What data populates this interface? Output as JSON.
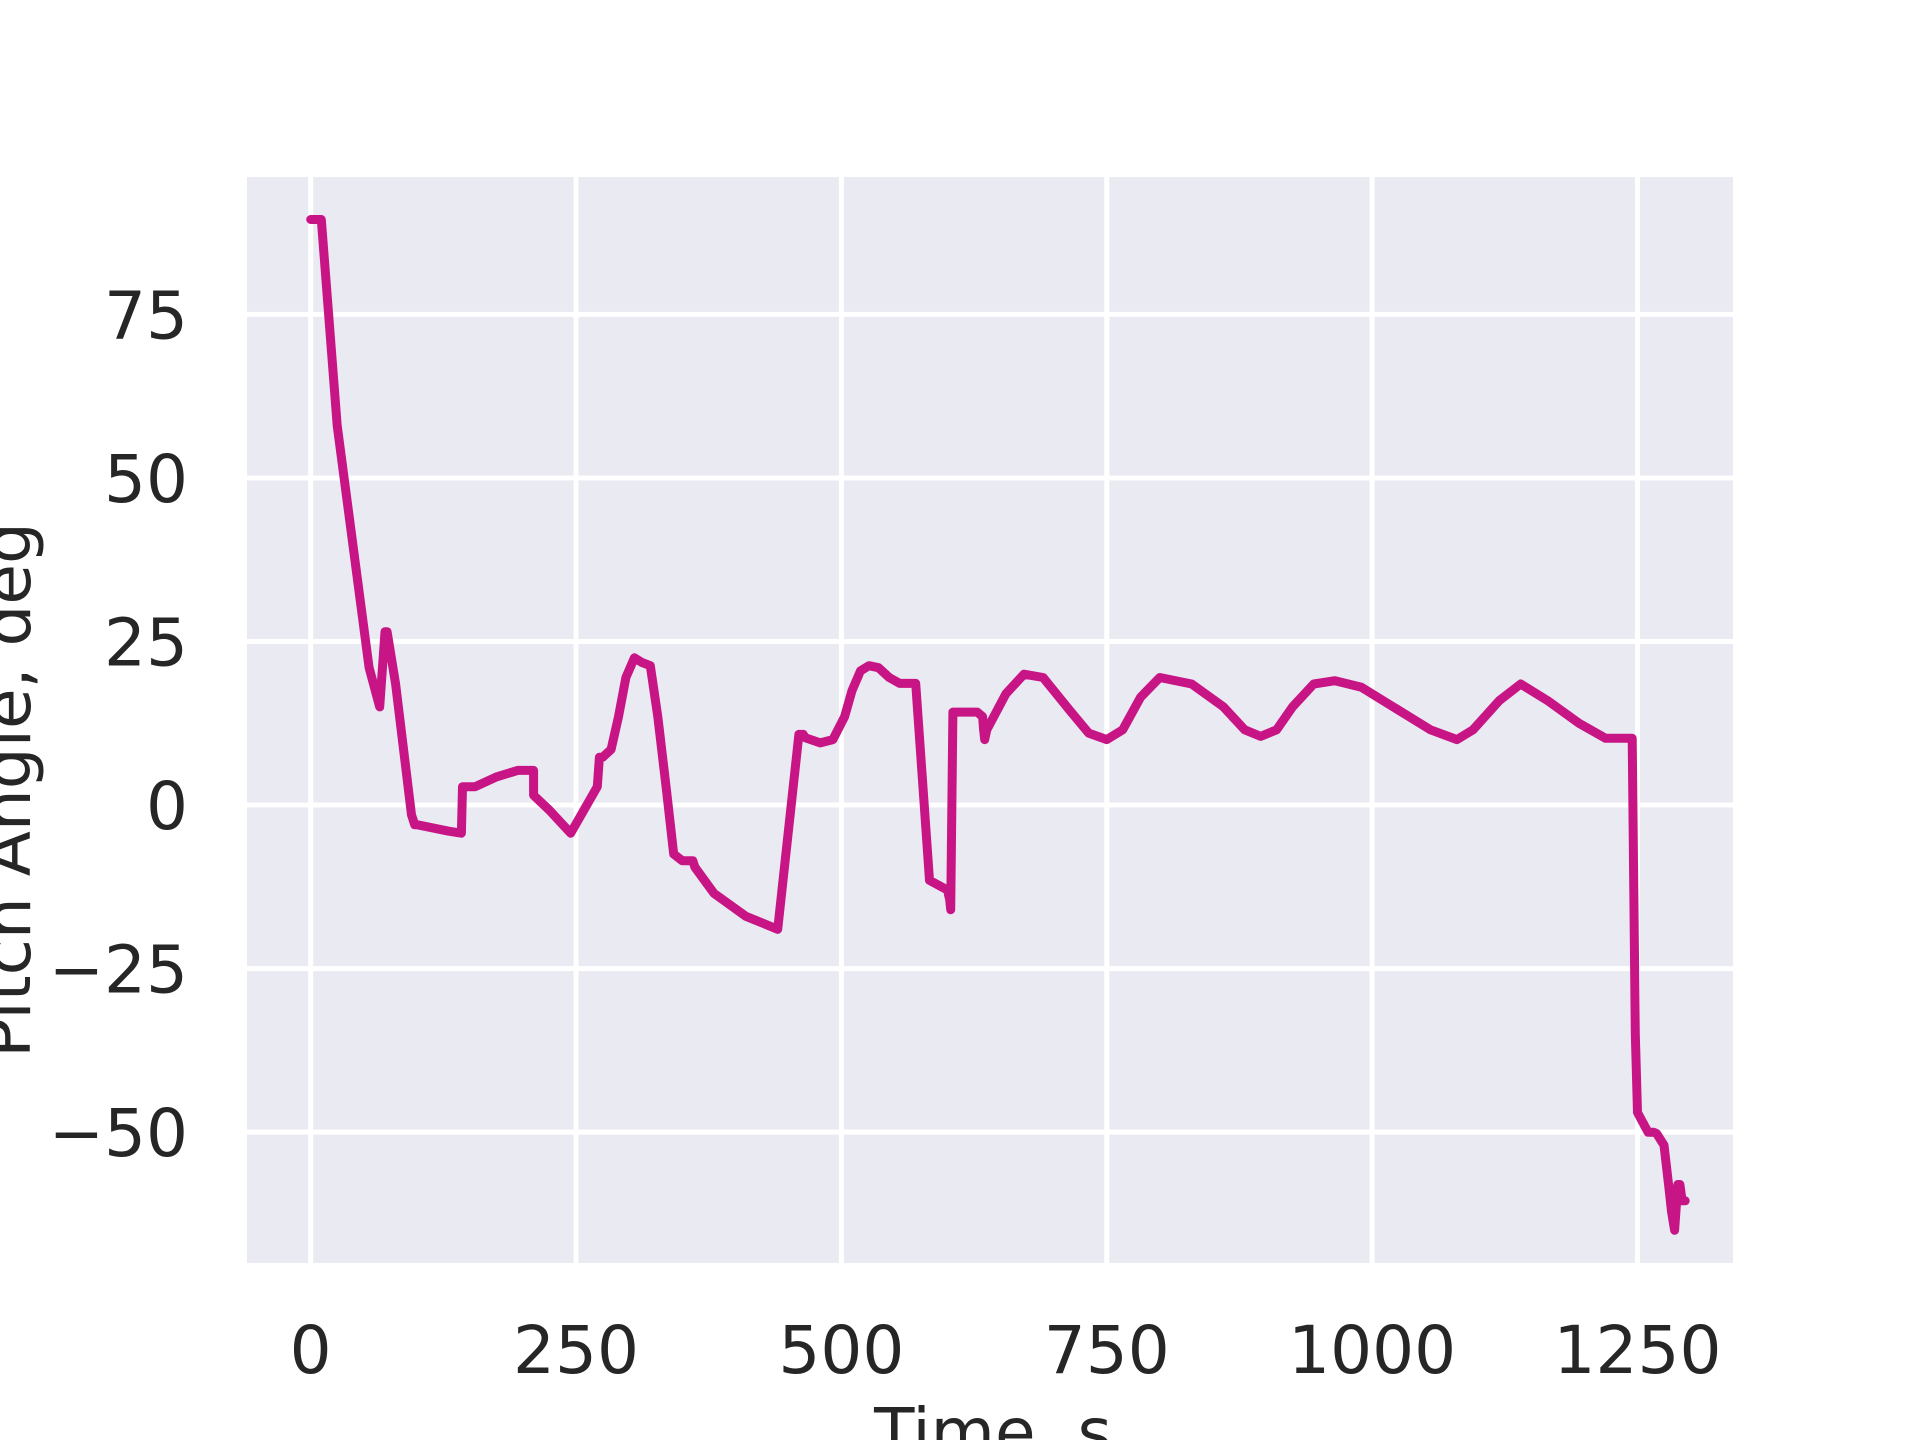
{
  "chart_data": {
    "type": "line",
    "title": "",
    "xlabel": "Time, s",
    "ylabel": "Pitch Angle, deg",
    "xlim": [
      -60,
      1340
    ],
    "ylim": [
      -70,
      96
    ],
    "xticks": [
      0,
      250,
      500,
      750,
      1000,
      1250
    ],
    "xtick_labels": [
      "0",
      "250",
      "500",
      "750",
      "1000",
      "1250"
    ],
    "yticks": [
      -50,
      -25,
      0,
      25,
      50,
      75
    ],
    "ytick_labels": [
      "−50",
      "−25",
      "0",
      "25",
      "50",
      75
    ],
    "grid": true,
    "line_color": "#c71585",
    "plot_background": "#eaeaf2",
    "grid_color": "#ffffff",
    "series": [
      {
        "x": [
          0,
          10,
          25,
          55,
          65,
          70,
          72,
          80,
          95,
          98,
          100,
          115,
          130,
          142,
          143,
          148,
          155,
          175,
          195,
          210,
          210,
          212,
          225,
          245,
          270,
          272,
          275,
          283,
          290,
          297,
          305,
          312,
          320,
          327,
          335,
          342,
          350,
          355,
          358,
          360,
          362,
          380,
          410,
          440,
          460,
          463,
          464,
          466,
          480,
          492,
          503,
          510,
          518,
          526,
          535,
          545,
          555,
          570,
          583,
          600,
          602,
          603,
          605,
          613,
          620,
          628,
          633,
          634,
          635,
          637,
          655,
          672,
          690,
          700,
          715,
          733,
          750,
          765,
          782,
          800,
          830,
          860,
          880,
          895,
          910,
          925,
          945,
          965,
          990,
          1020,
          1055,
          1080,
          1095,
          1120,
          1140,
          1165,
          1195,
          1220,
          1240,
          1245,
          1248,
          1250,
          1260,
          1265,
          1268,
          1275,
          1280,
          1282,
          1285,
          1288,
          1290,
          1292,
          1295
        ],
        "y": [
          89.5,
          89.5,
          58,
          21,
          15,
          26.5,
          26.5,
          18.5,
          -1.5,
          -3,
          -3,
          -3.5,
          -4,
          -4.3,
          2.8,
          2.8,
          2.8,
          4.3,
          5.3,
          5.3,
          1.5,
          1.2,
          -0.8,
          -4.3,
          2.8,
          7.3,
          7.3,
          8.5,
          13.5,
          19.5,
          22.5,
          21.8,
          21.3,
          13.5,
          2.5,
          -7.5,
          -8.5,
          -8.5,
          -8.5,
          -8.5,
          -9.5,
          -13.5,
          -17,
          -19,
          10.8,
          10.8,
          10.8,
          10.3,
          9.5,
          10,
          13.5,
          17.5,
          20.5,
          21.3,
          21,
          19.5,
          18.6,
          18.6,
          -11.5,
          -13,
          -14.5,
          -16,
          14.2,
          14.2,
          14.2,
          14.2,
          13.5,
          11.5,
          10,
          11.5,
          17,
          20,
          19.5,
          17.5,
          14.5,
          11,
          10,
          11.5,
          16.5,
          19.5,
          18.5,
          15,
          11.5,
          10.5,
          11.5,
          15,
          18.5,
          19,
          18,
          15,
          11.5,
          10,
          11.5,
          16,
          18.5,
          16,
          12.5,
          10.2,
          10.2,
          10.2,
          -35,
          -47,
          -50,
          -50,
          -50.2,
          -52,
          -59,
          -62,
          -65,
          -58,
          -58,
          -60.5,
          -60.5
        ]
      }
    ]
  }
}
